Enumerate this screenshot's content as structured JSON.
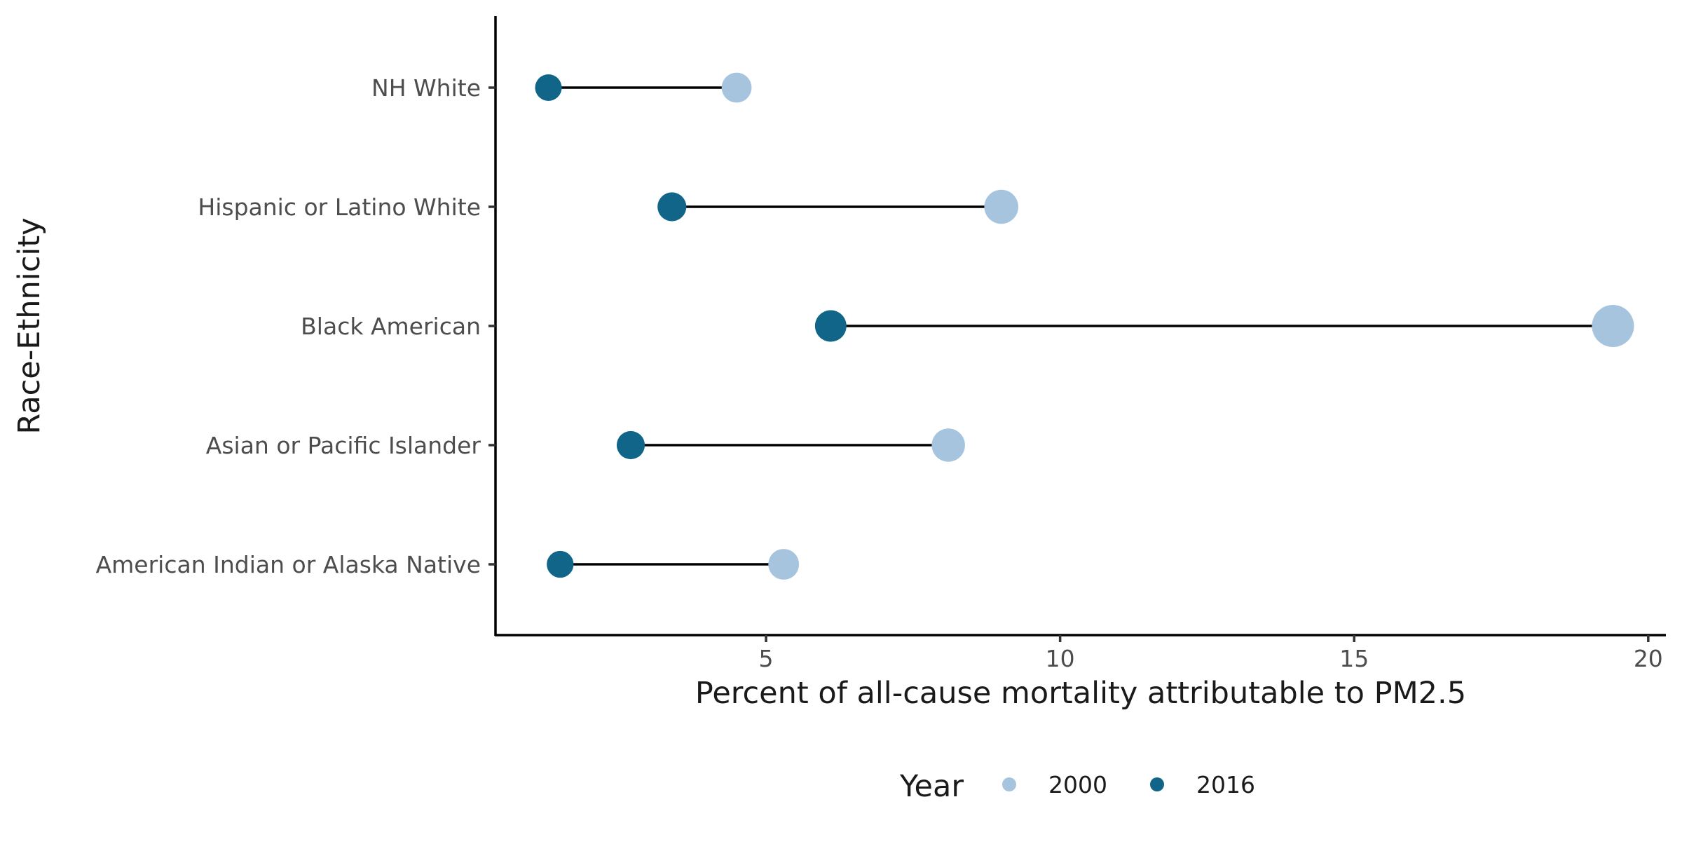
{
  "chart_data": {
    "type": "dumbbell",
    "title": "",
    "xlabel": "Percent of all-cause mortality attributable to PM2.5",
    "ylabel": "Race-Ethnicity",
    "xlim": [
      0.4,
      20.3
    ],
    "xticks": [
      5,
      10,
      15,
      20
    ],
    "grid": false,
    "legend": {
      "title": "Year",
      "position": "bottom",
      "entries": [
        "2000",
        "2016"
      ]
    },
    "colors": {
      "2000": "#a6c4de",
      "2016": "#106589"
    },
    "categories": [
      "NH White",
      "Hispanic or Latino White",
      "Black American",
      "Asian or Pacific Islander",
      "American Indian or Alaska Native"
    ],
    "series": [
      {
        "name": "2000",
        "values": [
          4.5,
          9.0,
          19.4,
          8.1,
          5.3
        ]
      },
      {
        "name": "2016",
        "values": [
          1.3,
          3.4,
          6.1,
          2.7,
          1.5
        ]
      }
    ]
  }
}
